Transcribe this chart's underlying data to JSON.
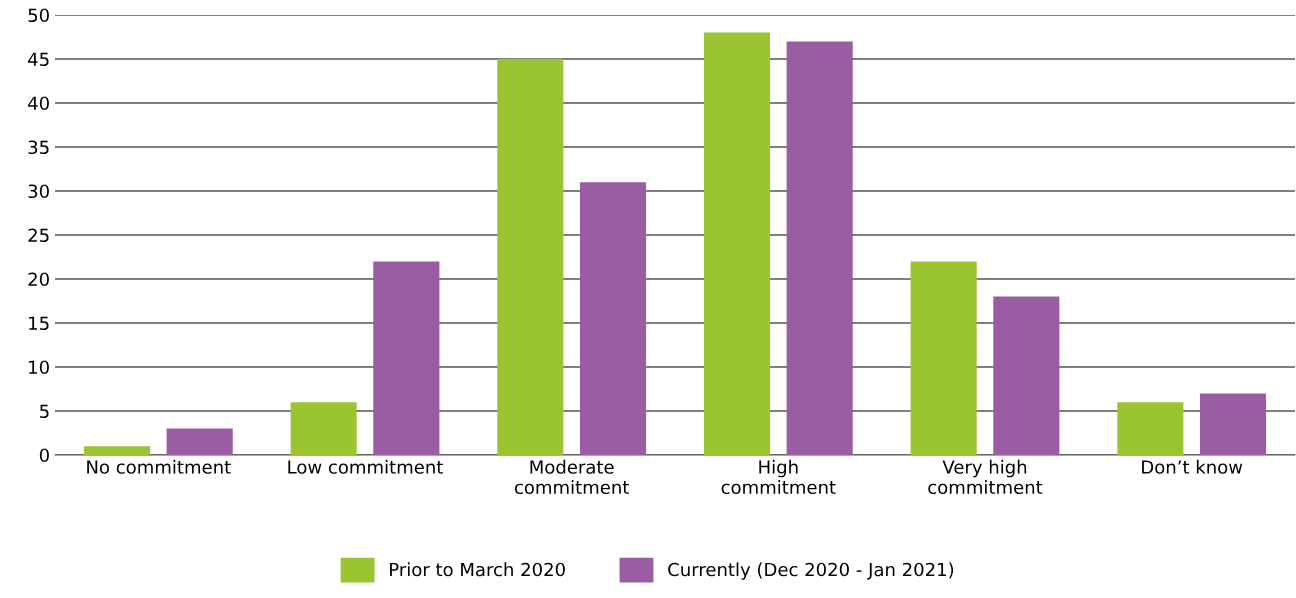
{
  "chart_data": {
    "type": "bar",
    "categories": [
      "No commitment",
      "Low commitment",
      "Moderate\ncommitment",
      "High\ncommitment",
      "Very high\ncommitment",
      "Don’t know"
    ],
    "series": [
      {
        "name": "Prior to March 2020",
        "color": "#9bc431",
        "values": [
          1,
          6,
          45,
          48,
          22,
          6
        ]
      },
      {
        "name": "Currently (Dec 2020 - Jan 2021)",
        "color": "#9a5ca3",
        "values": [
          3,
          22,
          31,
          47,
          18,
          7
        ]
      }
    ],
    "ylim": [
      0,
      50
    ],
    "yticks": [
      0,
      5,
      10,
      15,
      20,
      25,
      30,
      35,
      40,
      45,
      50
    ],
    "grid": "y",
    "legend": "bottom"
  }
}
